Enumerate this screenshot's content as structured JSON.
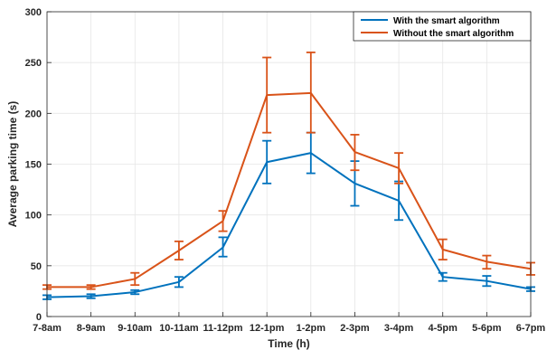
{
  "chart_data": {
    "type": "line",
    "categories": [
      "7-8am",
      "8-9am",
      "9-10am",
      "10-11am",
      "11-12pm",
      "12-1pm",
      "1-2pm",
      "2-3pm",
      "3-4pm",
      "4-5pm",
      "5-6pm",
      "6-7pm"
    ],
    "xlabel": "Time (h)",
    "ylabel": "Average parking time (s)",
    "ylim": [
      0,
      300
    ],
    "yticks": [
      0,
      50,
      100,
      150,
      200,
      250,
      300
    ],
    "grid": true,
    "legend_position": "top-right",
    "series": [
      {
        "name": "With the smart algorithm",
        "color": "#0072BD",
        "values": [
          19,
          20,
          24,
          34,
          68,
          152,
          161,
          131,
          114,
          39,
          35,
          27
        ],
        "error_low": [
          17,
          18,
          22,
          29,
          59,
          131,
          141,
          109,
          95,
          35,
          30,
          25
        ],
        "error_high": [
          21,
          22,
          26,
          39,
          78,
          173,
          181,
          153,
          133,
          43,
          40,
          29
        ]
      },
      {
        "name": "Without the smart algorithm",
        "color": "#D95319",
        "values": [
          29,
          29,
          37,
          65,
          94,
          218,
          220,
          162,
          146,
          66,
          54,
          47
        ],
        "error_low": [
          27,
          27,
          31,
          56,
          84,
          181,
          181,
          144,
          131,
          56,
          47,
          41
        ],
        "error_high": [
          31,
          31,
          43,
          74,
          104,
          255,
          260,
          179,
          161,
          76,
          60,
          53
        ]
      }
    ]
  }
}
